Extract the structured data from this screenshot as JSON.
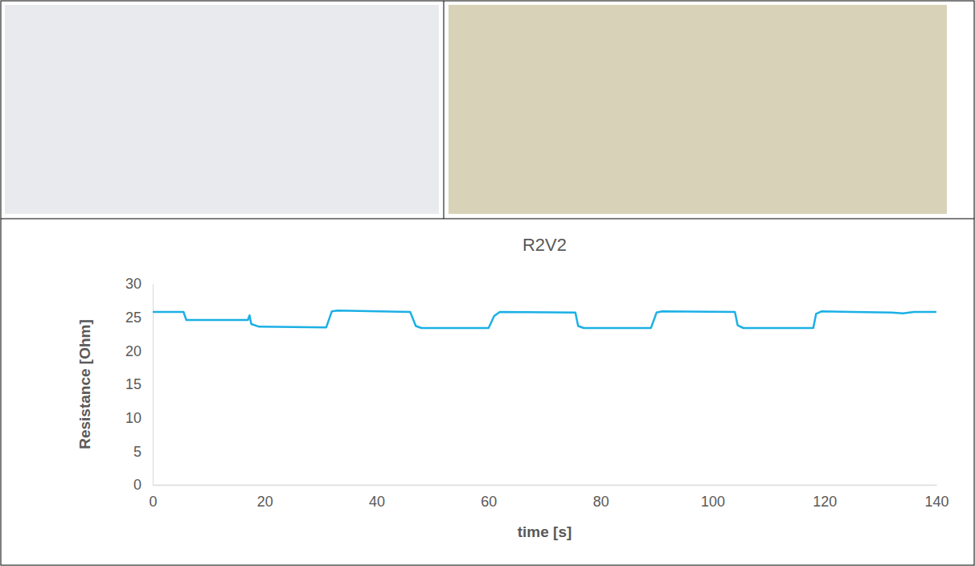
{
  "chart_data": {
    "type": "line",
    "title": "R2V2",
    "x_label": "time [s]",
    "y_label": "Resistance [Ohm]",
    "x": [
      0,
      5.5,
      6,
      17,
      17.3,
      17.6,
      19,
      31,
      32,
      33,
      46,
      47,
      48,
      60,
      61,
      62,
      75.5,
      76,
      77,
      89,
      90,
      91,
      104,
      104.5,
      105.5,
      118,
      118.5,
      119.5,
      125,
      132,
      134,
      136,
      140
    ],
    "values": [
      25.8,
      25.8,
      24.6,
      24.6,
      25.3,
      24.0,
      23.6,
      23.5,
      25.9,
      26.0,
      25.8,
      23.7,
      23.4,
      23.4,
      25.2,
      25.8,
      25.7,
      23.7,
      23.4,
      23.4,
      25.7,
      25.9,
      25.8,
      23.8,
      23.4,
      23.4,
      25.5,
      25.9,
      25.8,
      25.7,
      25.6,
      25.8,
      25.8
    ],
    "color": "#1cb0e6",
    "xlim": [
      0,
      140
    ],
    "xticks": [
      0,
      20,
      40,
      60,
      80,
      100,
      120,
      140
    ],
    "ylim": [
      0,
      30
    ],
    "yticks": [
      0,
      5,
      10,
      15,
      20,
      25,
      30
    ],
    "grid": false
  }
}
